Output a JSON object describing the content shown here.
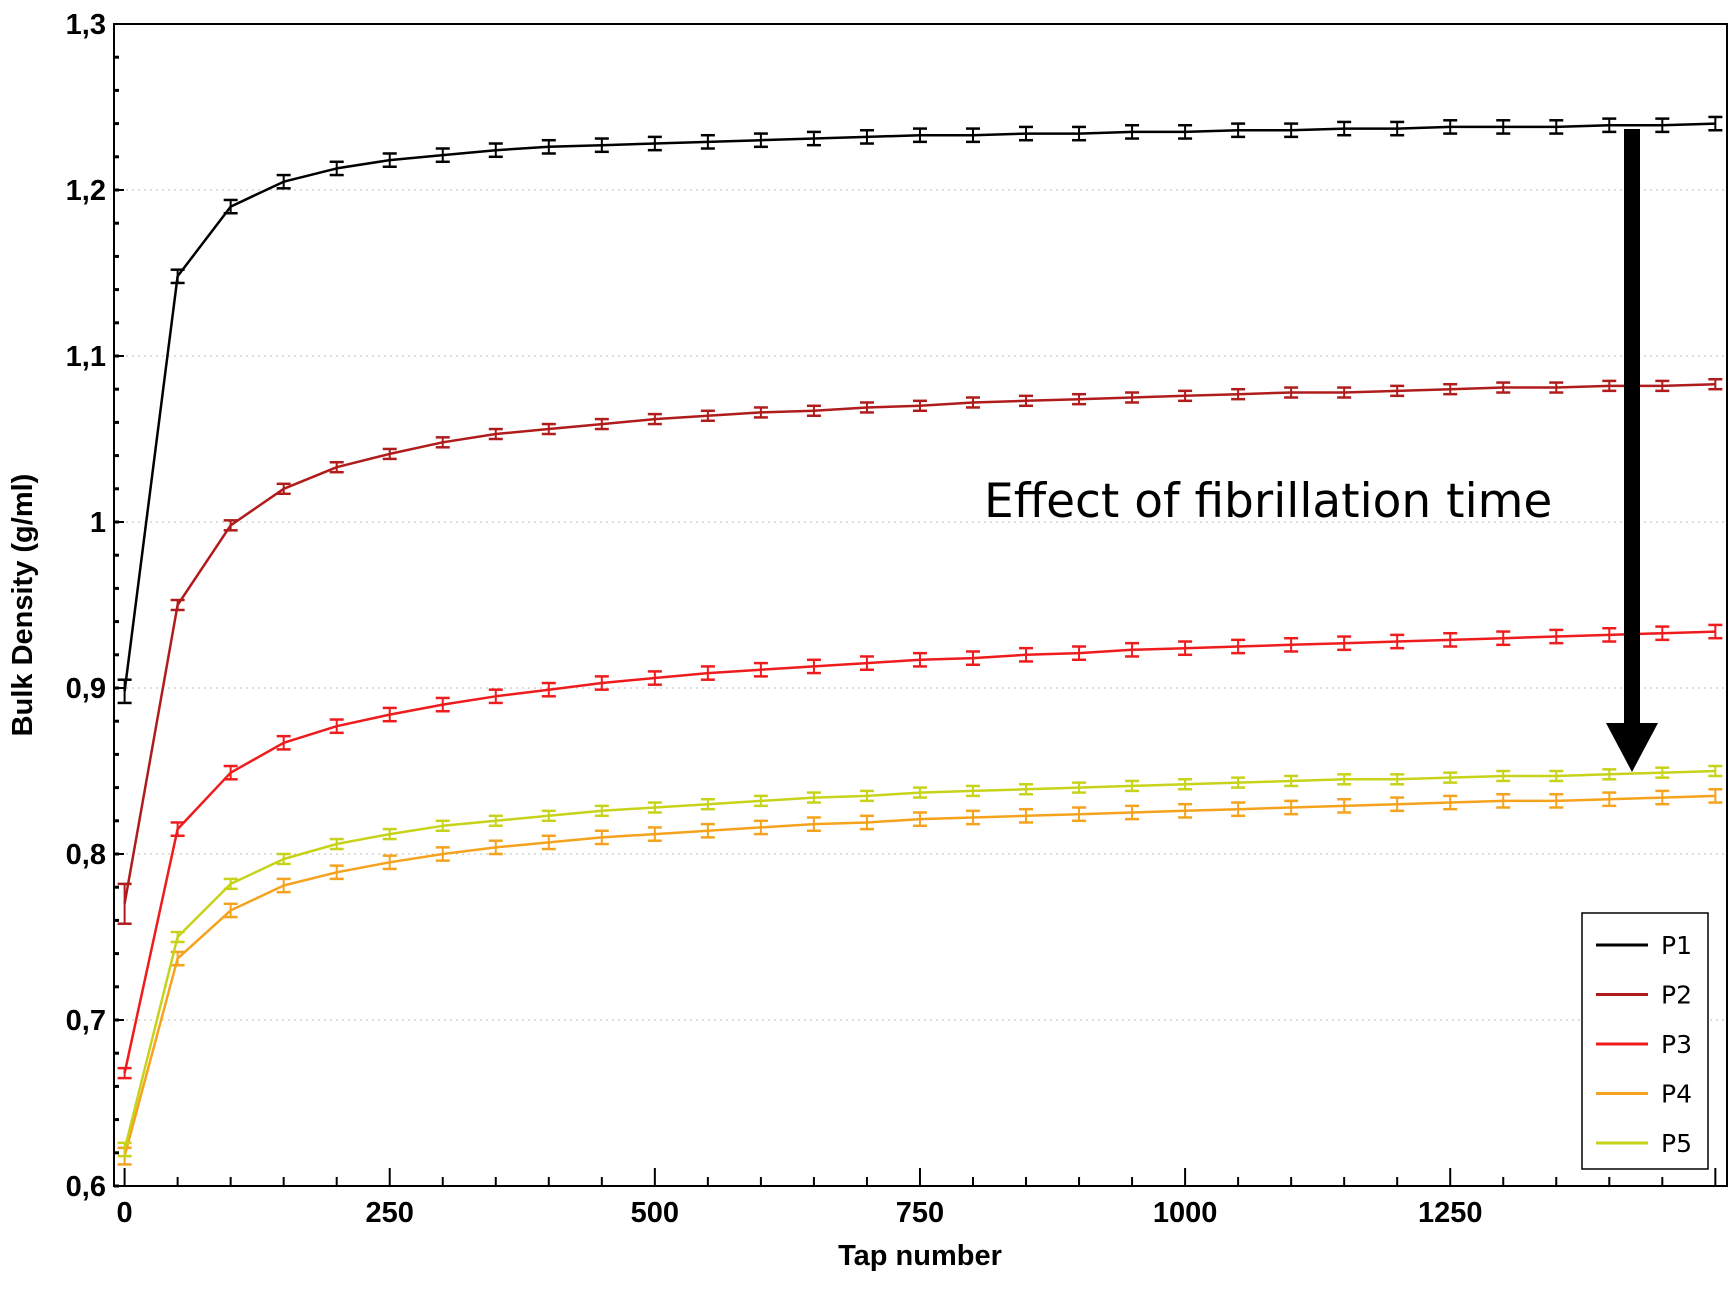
{
  "chart_data": {
    "type": "line",
    "title": "",
    "xlabel": "Tap number",
    "ylabel": "Bulk Density (g/ml)",
    "xlim": [
      -10,
      1511
    ],
    "ylim": [
      0.6,
      1.3
    ],
    "xticks": [
      0,
      250,
      500,
      750,
      1000,
      1250
    ],
    "xtick_labels": [
      "0",
      "250",
      "500",
      "750",
      "1000",
      "1250"
    ],
    "yticks": [
      0.6,
      0.7,
      0.8,
      0.9,
      1.0,
      1.1,
      1.2,
      1.3
    ],
    "ytick_labels": [
      "0,6",
      "0,7",
      "0,8",
      "0,9",
      "1",
      "1,1",
      "1,2",
      "1,3"
    ],
    "grid": "horizontal dotted at major y ticks",
    "legend_position": "bottom-right",
    "annotation": "Effect of fibrillation time",
    "x": [
      0,
      50,
      100,
      150,
      200,
      250,
      300,
      350,
      400,
      450,
      500,
      550,
      600,
      650,
      700,
      750,
      800,
      850,
      900,
      950,
      1000,
      1050,
      1100,
      1150,
      1200,
      1250,
      1300,
      1350,
      1400,
      1450,
      1500
    ],
    "series": [
      {
        "name": "P1",
        "color": "#000000",
        "error": 0.004,
        "first_error": 0.007,
        "values": [
          0.898,
          1.148,
          1.19,
          1.205,
          1.213,
          1.218,
          1.221,
          1.224,
          1.226,
          1.227,
          1.228,
          1.229,
          1.23,
          1.231,
          1.232,
          1.233,
          1.233,
          1.234,
          1.234,
          1.235,
          1.235,
          1.236,
          1.236,
          1.237,
          1.237,
          1.238,
          1.238,
          1.238,
          1.239,
          1.239,
          1.24
        ]
      },
      {
        "name": "P2",
        "color": "#b01c1c",
        "error": 0.003,
        "first_error": 0.012,
        "values": [
          0.77,
          0.95,
          0.998,
          1.02,
          1.033,
          1.041,
          1.048,
          1.053,
          1.056,
          1.059,
          1.062,
          1.064,
          1.066,
          1.067,
          1.069,
          1.07,
          1.072,
          1.073,
          1.074,
          1.075,
          1.076,
          1.077,
          1.078,
          1.078,
          1.079,
          1.08,
          1.081,
          1.081,
          1.082,
          1.082,
          1.083
        ]
      },
      {
        "name": "P3",
        "color": "#ee1c1c",
        "error": 0.004,
        "first_error": 0.003,
        "values": [
          0.668,
          0.815,
          0.849,
          0.867,
          0.877,
          0.884,
          0.89,
          0.895,
          0.899,
          0.903,
          0.906,
          0.909,
          0.911,
          0.913,
          0.915,
          0.917,
          0.918,
          0.92,
          0.921,
          0.923,
          0.924,
          0.925,
          0.926,
          0.927,
          0.928,
          0.929,
          0.93,
          0.931,
          0.932,
          0.933,
          0.934
        ]
      },
      {
        "name": "P4",
        "color": "#f5a31e",
        "error": 0.004,
        "first_error": 0.005,
        "values": [
          0.618,
          0.737,
          0.766,
          0.781,
          0.789,
          0.795,
          0.8,
          0.804,
          0.807,
          0.81,
          0.812,
          0.814,
          0.816,
          0.818,
          0.819,
          0.821,
          0.822,
          0.823,
          0.824,
          0.825,
          0.826,
          0.827,
          0.828,
          0.829,
          0.83,
          0.831,
          0.832,
          0.832,
          0.833,
          0.834,
          0.835
        ]
      },
      {
        "name": "P5",
        "color": "#c6d31a",
        "error": 0.003,
        "first_error": 0.004,
        "values": [
          0.622,
          0.75,
          0.782,
          0.797,
          0.806,
          0.812,
          0.817,
          0.82,
          0.823,
          0.826,
          0.828,
          0.83,
          0.832,
          0.834,
          0.835,
          0.837,
          0.838,
          0.839,
          0.84,
          0.841,
          0.842,
          0.843,
          0.844,
          0.845,
          0.845,
          0.846,
          0.847,
          0.847,
          0.848,
          0.849,
          0.85
        ]
      }
    ]
  }
}
